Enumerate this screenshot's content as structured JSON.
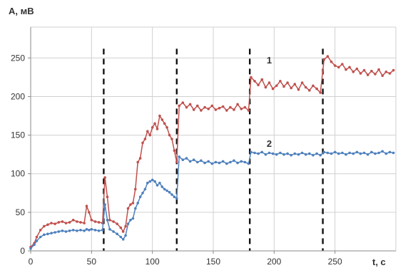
{
  "chart_data": {
    "type": "line",
    "ylabel": "A, мВ",
    "xlabel": "t, c",
    "xlim": [
      0,
      300
    ],
    "ylim": [
      0,
      290
    ],
    "xticks": [
      0,
      50,
      100,
      150,
      200,
      250
    ],
    "yticks": [
      0,
      50,
      100,
      150,
      200,
      250
    ],
    "grid": true,
    "phase_boundaries": [
      60,
      120,
      180,
      240
    ],
    "series": [
      {
        "name": "1",
        "color": "#c0504d",
        "points": [
          [
            0,
            5
          ],
          [
            3,
            10
          ],
          [
            5,
            18
          ],
          [
            8,
            27
          ],
          [
            11,
            32
          ],
          [
            14,
            34
          ],
          [
            17,
            36
          ],
          [
            20,
            35
          ],
          [
            23,
            37
          ],
          [
            26,
            38
          ],
          [
            29,
            36
          ],
          [
            32,
            37
          ],
          [
            35,
            40
          ],
          [
            38,
            38
          ],
          [
            41,
            37
          ],
          [
            44,
            36
          ],
          [
            46,
            58
          ],
          [
            48,
            50
          ],
          [
            50,
            40
          ],
          [
            53,
            38
          ],
          [
            56,
            37
          ],
          [
            59,
            36
          ],
          [
            61,
            95
          ],
          [
            63,
            70
          ],
          [
            65,
            40
          ],
          [
            68,
            38
          ],
          [
            71,
            35
          ],
          [
            74,
            30
          ],
          [
            76,
            25
          ],
          [
            78,
            32
          ],
          [
            80,
            55
          ],
          [
            82,
            60
          ],
          [
            84,
            62
          ],
          [
            86,
            80
          ],
          [
            88,
            115
          ],
          [
            90,
            120
          ],
          [
            92,
            140
          ],
          [
            94,
            145
          ],
          [
            96,
            155
          ],
          [
            98,
            150
          ],
          [
            100,
            160
          ],
          [
            102,
            165
          ],
          [
            104,
            158
          ],
          [
            106,
            175
          ],
          [
            108,
            170
          ],
          [
            110,
            165
          ],
          [
            112,
            160
          ],
          [
            114,
            150
          ],
          [
            116,
            145
          ],
          [
            118,
            130
          ],
          [
            120,
            115
          ],
          [
            122,
            188
          ],
          [
            125,
            192
          ],
          [
            128,
            186
          ],
          [
            131,
            190
          ],
          [
            134,
            183
          ],
          [
            137,
            188
          ],
          [
            140,
            182
          ],
          [
            143,
            186
          ],
          [
            146,
            184
          ],
          [
            149,
            188
          ],
          [
            152,
            183
          ],
          [
            155,
            185
          ],
          [
            158,
            187
          ],
          [
            161,
            182
          ],
          [
            164,
            186
          ],
          [
            167,
            183
          ],
          [
            170,
            190
          ],
          [
            173,
            184
          ],
          [
            176,
            186
          ],
          [
            179,
            182
          ],
          [
            181,
            225
          ],
          [
            184,
            220
          ],
          [
            187,
            215
          ],
          [
            190,
            222
          ],
          [
            193,
            212
          ],
          [
            196,
            218
          ],
          [
            199,
            210
          ],
          [
            202,
            214
          ],
          [
            205,
            220
          ],
          [
            208,
            213
          ],
          [
            211,
            218
          ],
          [
            214,
            211
          ],
          [
            217,
            216
          ],
          [
            220,
            209
          ],
          [
            223,
            218
          ],
          [
            226,
            212
          ],
          [
            229,
            208
          ],
          [
            232,
            214
          ],
          [
            235,
            210
          ],
          [
            238,
            205
          ],
          [
            241,
            248
          ],
          [
            244,
            252
          ],
          [
            247,
            245
          ],
          [
            250,
            240
          ],
          [
            253,
            238
          ],
          [
            256,
            242
          ],
          [
            259,
            235
          ],
          [
            262,
            238
          ],
          [
            265,
            232
          ],
          [
            268,
            236
          ],
          [
            271,
            230
          ],
          [
            274,
            234
          ],
          [
            277,
            228
          ],
          [
            280,
            233
          ],
          [
            283,
            229
          ],
          [
            286,
            235
          ],
          [
            289,
            227
          ],
          [
            292,
            232
          ],
          [
            295,
            230
          ],
          [
            298,
            234
          ]
        ]
      },
      {
        "name": "2",
        "color": "#4f81bd",
        "points": [
          [
            0,
            3
          ],
          [
            3,
            8
          ],
          [
            5,
            13
          ],
          [
            8,
            18
          ],
          [
            11,
            21
          ],
          [
            14,
            22
          ],
          [
            17,
            23
          ],
          [
            20,
            24
          ],
          [
            23,
            25
          ],
          [
            26,
            26
          ],
          [
            29,
            25
          ],
          [
            32,
            26
          ],
          [
            35,
            27
          ],
          [
            38,
            26
          ],
          [
            41,
            27
          ],
          [
            44,
            26
          ],
          [
            46,
            28
          ],
          [
            48,
            27
          ],
          [
            50,
            28
          ],
          [
            53,
            27
          ],
          [
            56,
            26
          ],
          [
            59,
            27
          ],
          [
            61,
            60
          ],
          [
            63,
            40
          ],
          [
            65,
            28
          ],
          [
            68,
            25
          ],
          [
            71,
            22
          ],
          [
            74,
            18
          ],
          [
            76,
            15
          ],
          [
            78,
            20
          ],
          [
            80,
            35
          ],
          [
            82,
            40
          ],
          [
            84,
            42
          ],
          [
            86,
            55
          ],
          [
            88,
            62
          ],
          [
            90,
            70
          ],
          [
            92,
            75
          ],
          [
            94,
            80
          ],
          [
            96,
            88
          ],
          [
            98,
            90
          ],
          [
            100,
            92
          ],
          [
            102,
            90
          ],
          [
            104,
            85
          ],
          [
            106,
            88
          ],
          [
            108,
            83
          ],
          [
            110,
            80
          ],
          [
            112,
            78
          ],
          [
            114,
            76
          ],
          [
            116,
            73
          ],
          [
            118,
            70
          ],
          [
            120,
            68
          ],
          [
            122,
            122
          ],
          [
            125,
            118
          ],
          [
            128,
            120
          ],
          [
            131,
            116
          ],
          [
            134,
            118
          ],
          [
            137,
            115
          ],
          [
            140,
            117
          ],
          [
            143,
            114
          ],
          [
            146,
            116
          ],
          [
            149,
            113
          ],
          [
            152,
            115
          ],
          [
            155,
            114
          ],
          [
            158,
            116
          ],
          [
            161,
            113
          ],
          [
            164,
            115
          ],
          [
            167,
            117
          ],
          [
            170,
            114
          ],
          [
            173,
            116
          ],
          [
            176,
            115
          ],
          [
            179,
            113
          ],
          [
            181,
            128
          ],
          [
            184,
            127
          ],
          [
            187,
            126
          ],
          [
            190,
            128
          ],
          [
            193,
            125
          ],
          [
            196,
            127
          ],
          [
            199,
            126
          ],
          [
            202,
            125
          ],
          [
            205,
            127
          ],
          [
            208,
            125
          ],
          [
            211,
            126
          ],
          [
            214,
            124
          ],
          [
            217,
            126
          ],
          [
            220,
            125
          ],
          [
            223,
            127
          ],
          [
            226,
            125
          ],
          [
            229,
            126
          ],
          [
            232,
            124
          ],
          [
            235,
            126
          ],
          [
            238,
            124
          ],
          [
            241,
            128
          ],
          [
            244,
            127
          ],
          [
            247,
            126
          ],
          [
            250,
            128
          ],
          [
            253,
            126
          ],
          [
            256,
            127
          ],
          [
            259,
            125
          ],
          [
            262,
            127
          ],
          [
            265,
            126
          ],
          [
            268,
            128
          ],
          [
            271,
            126
          ],
          [
            274,
            127
          ],
          [
            277,
            125
          ],
          [
            280,
            128
          ],
          [
            283,
            126
          ],
          [
            286,
            127
          ],
          [
            289,
            129
          ],
          [
            292,
            126
          ],
          [
            295,
            128
          ],
          [
            298,
            127
          ]
        ]
      }
    ],
    "series_labels": [
      {
        "text": "1",
        "x": 196,
        "y": 243
      },
      {
        "text": "2",
        "x": 196,
        "y": 135
      }
    ]
  }
}
